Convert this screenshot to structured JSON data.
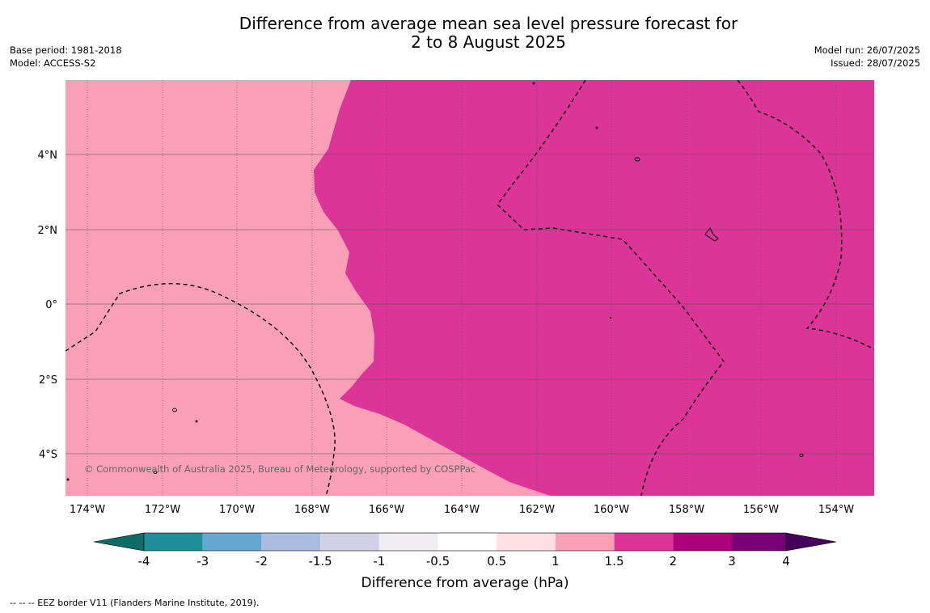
{
  "title_line1": "Difference from average mean sea level pressure forecast for",
  "title_line2": "2 to 8 August 2025",
  "meta_left": [
    "Base period: 1981-2018",
    "Model: ACCESS-S2"
  ],
  "meta_right": [
    "Model run: 26/07/2025",
    "Issued: 28/07/2025"
  ],
  "copyright": "© Commonwealth of Australia 2025, Bureau of Meteorology, supported by COSPPac",
  "footer": "--  --  -- EEZ border V11 (Flanders Marine Institute, 2019).",
  "map": {
    "lon_ticks": [
      "174°W",
      "172°W",
      "170°W",
      "168°W",
      "166°W",
      "164°W",
      "162°W",
      "160°W",
      "158°W",
      "156°W",
      "154°W"
    ],
    "lat_ticks": [
      "4°N",
      "2°N",
      "0°",
      "2°S",
      "4°S"
    ],
    "colors": {
      "low_anomaly_fill": "#f99fb6",
      "high_anomaly_fill": "#dc3598",
      "grid_line": "#555555",
      "eez_border": "#000000"
    }
  },
  "colorbar": {
    "label": "Difference from average (hPa)",
    "tick_labels": [
      "-4",
      "-3",
      "-2",
      "-1.5",
      "-1",
      "-0.5",
      "0.5",
      "1",
      "1.5",
      "2",
      "3",
      "4"
    ],
    "colors": [
      "#0d6b68",
      "#1e8f98",
      "#67a8d0",
      "#a8bde0",
      "#d0d0e6",
      "#f0eef3",
      "#ffffff",
      "#ffe0e2",
      "#f99fb6",
      "#dc3598",
      "#ad007d",
      "#7a0077",
      "#46005c"
    ]
  }
}
